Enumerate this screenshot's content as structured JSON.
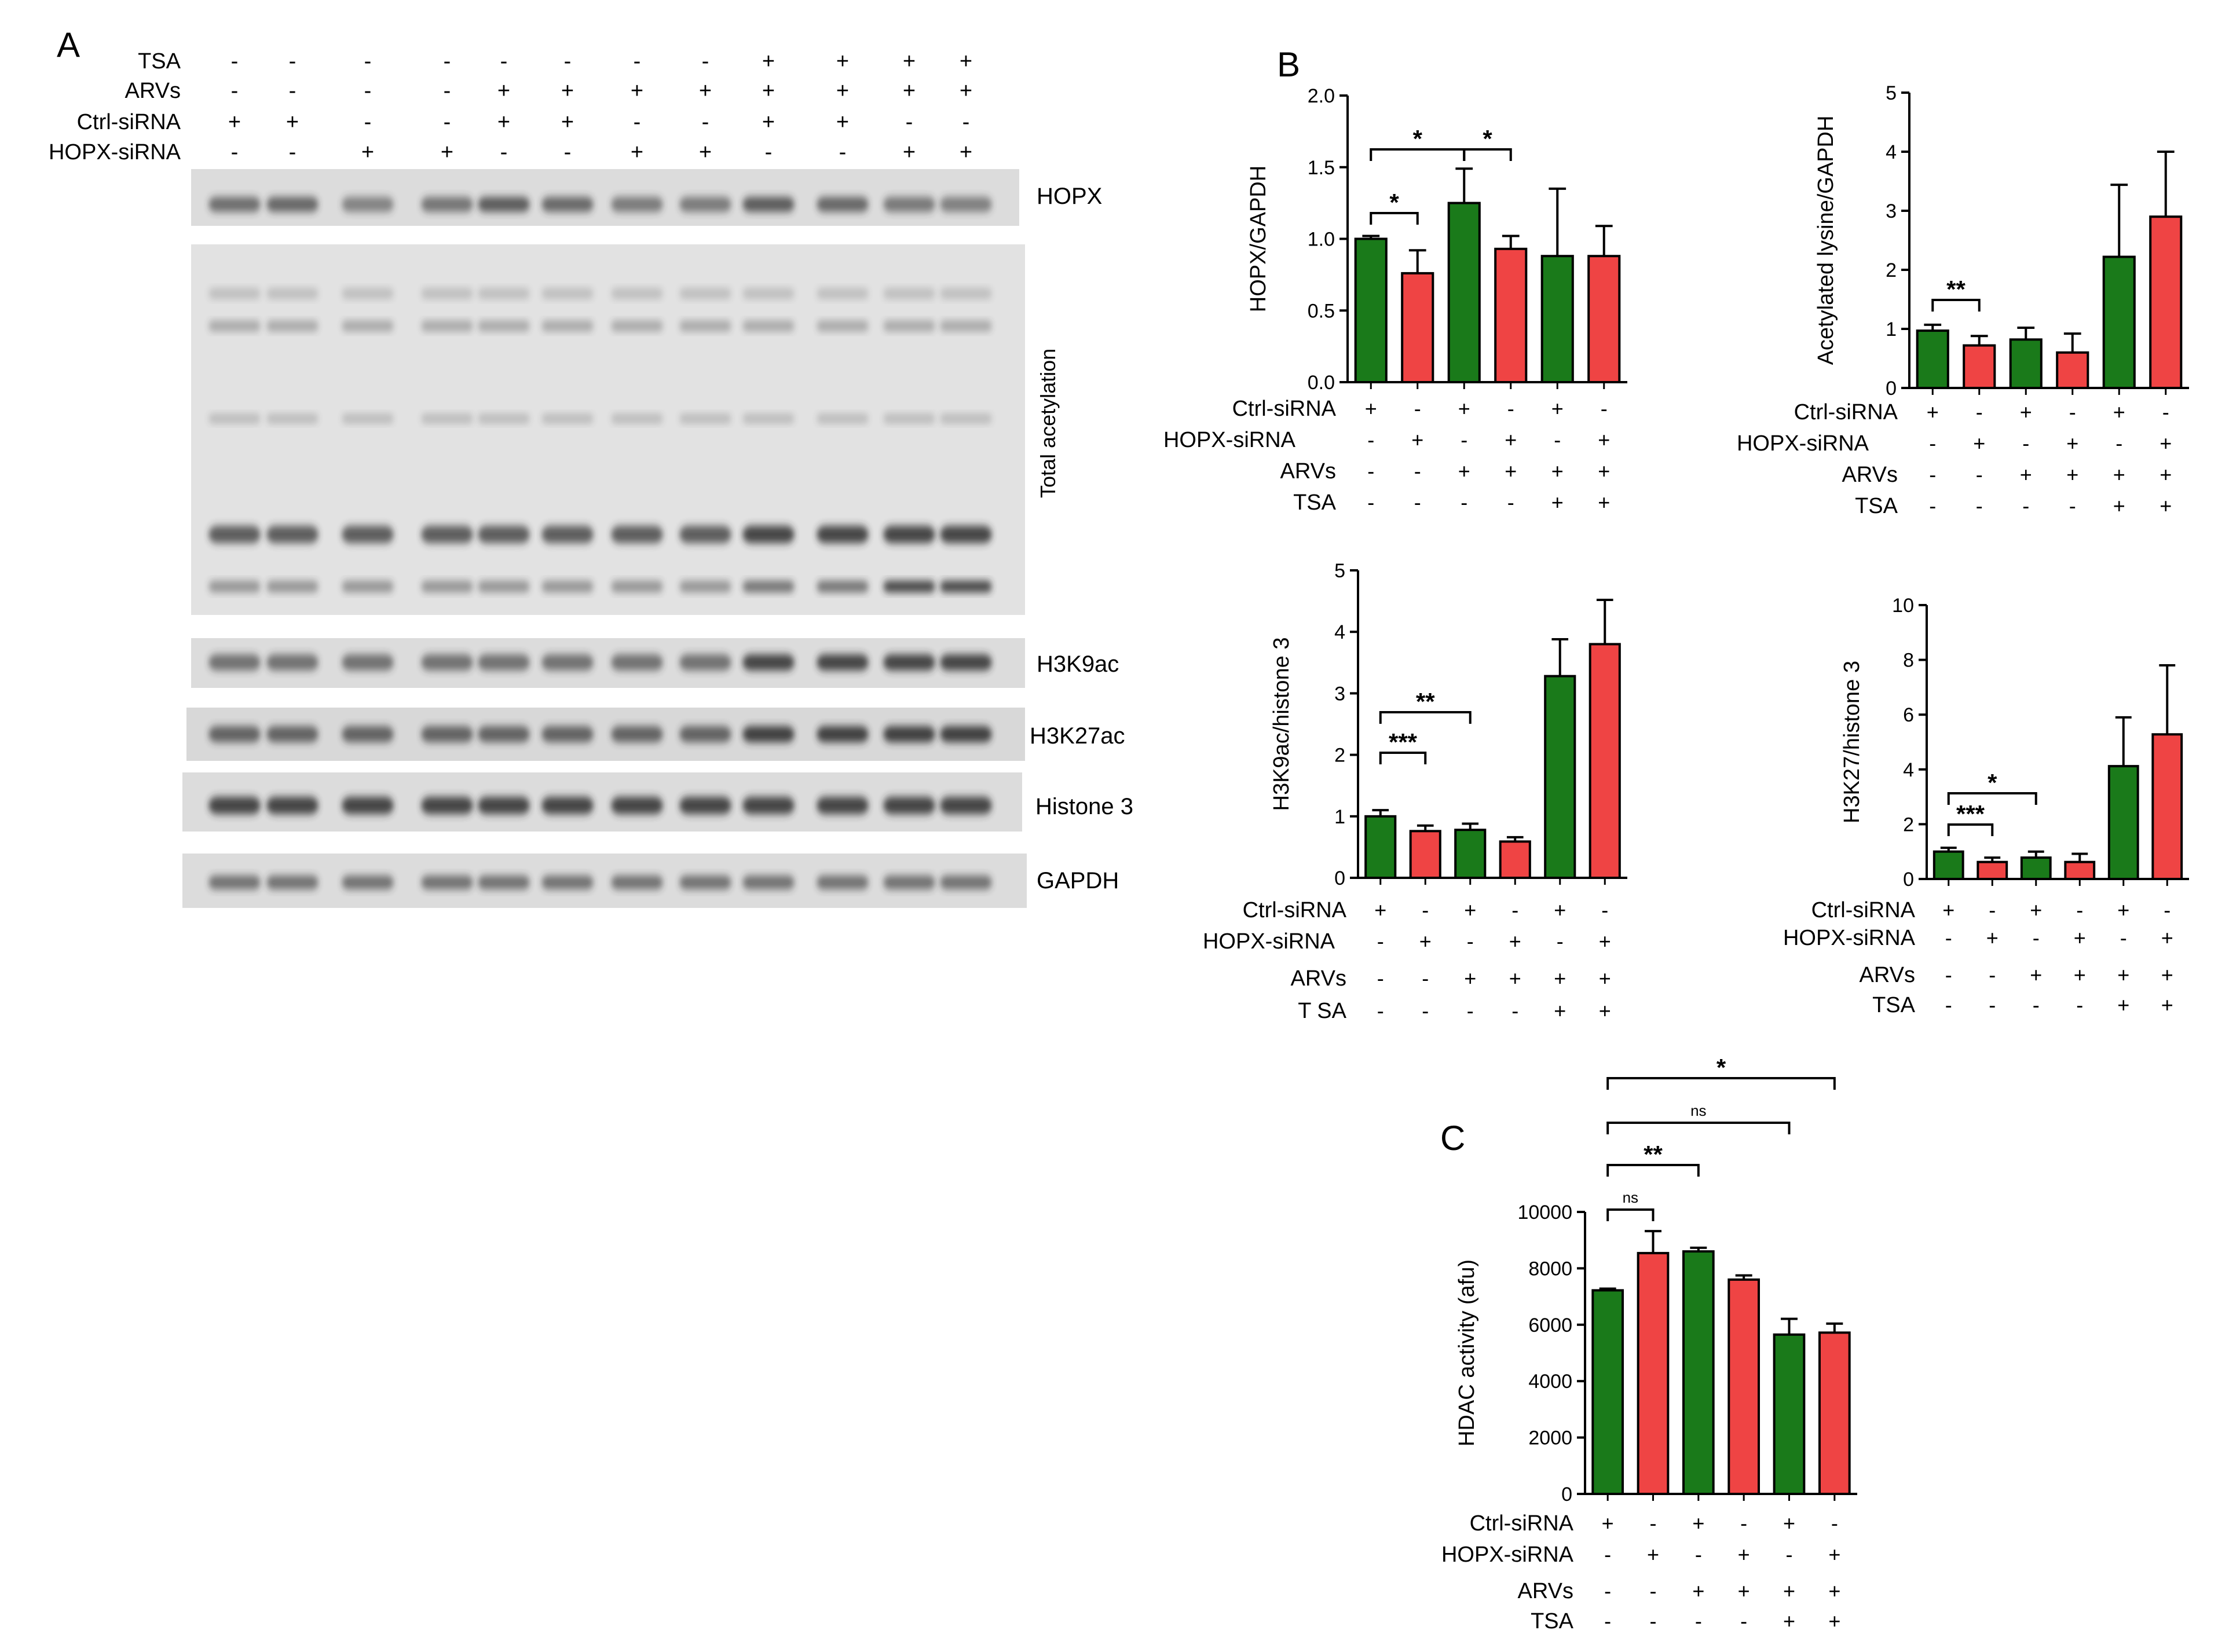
{
  "panel_labels": {
    "a": "A",
    "b": "B",
    "c": "C"
  },
  "blot": {
    "condition_rows": [
      {
        "name": "TSA",
        "signs": [
          "-",
          "-",
          "-",
          "-",
          "-",
          "-",
          "-",
          "-",
          "+",
          "+",
          "+",
          "+"
        ]
      },
      {
        "name": "ARVs",
        "signs": [
          "-",
          "-",
          "-",
          "-",
          "+",
          "+",
          "+",
          "+",
          "+",
          "+",
          "+",
          "+"
        ]
      },
      {
        "name": "Ctrl-siRNA",
        "signs": [
          "+",
          "+",
          "-",
          "-",
          "+",
          "+",
          "-",
          "-",
          "+",
          "+",
          "-",
          "-"
        ]
      },
      {
        "name": "HOPX-siRNA",
        "signs": [
          "-",
          "-",
          "+",
          "+",
          "-",
          "-",
          "+",
          "+",
          "-",
          "-",
          "+",
          "+"
        ]
      }
    ],
    "labels": {
      "hopx": "HOPX",
      "total_acetylation": "Total acetylation",
      "h3k9ac": "H3K9ac",
      "h3k27ac": "H3K27ac",
      "histone3": "Histone 3",
      "gapdh": "GAPDH"
    }
  },
  "chart_data": [
    {
      "id": "hopx",
      "type": "bar",
      "ylabel": "HOPX/GAPDH",
      "ylim": [
        0,
        2.0
      ],
      "yticks": [
        "0.0",
        "0.5",
        "1.0",
        "1.5",
        "2.0"
      ],
      "values": [
        1.0,
        0.76,
        1.25,
        0.93,
        0.88,
        0.88
      ],
      "errors": [
        0.02,
        0.16,
        0.24,
        0.09,
        0.47,
        0.21
      ],
      "colors": [
        "#1a7a1a",
        "#ef4444",
        "#1a7a1a",
        "#ef4444",
        "#1a7a1a",
        "#ef4444"
      ],
      "conditions": [
        {
          "name": "Ctrl-siRNA",
          "signs": [
            "+",
            "-",
            "+",
            "-",
            "+",
            "-"
          ]
        },
        {
          "name": "HOPX-siRNA",
          "signs": [
            "-",
            "+",
            "-",
            "+",
            "-",
            "+"
          ]
        },
        {
          "name": "ARVs",
          "signs": [
            "-",
            "-",
            "+",
            "+",
            "+",
            "+"
          ]
        },
        {
          "name": "TSA",
          "signs": [
            "-",
            "-",
            "-",
            "-",
            "+",
            "+"
          ]
        }
      ],
      "significance": [
        {
          "from": 0,
          "to": 1,
          "label": "*"
        },
        {
          "from": 0,
          "to": 2,
          "label": "*"
        },
        {
          "from": 2,
          "to": 3,
          "label": "*"
        }
      ]
    },
    {
      "id": "acetyl",
      "type": "bar",
      "ylabel": "Acetylated lysine/GAPDH",
      "ylim": [
        0,
        5
      ],
      "yticks": [
        "0",
        "1",
        "2",
        "3",
        "4",
        "5"
      ],
      "values": [
        0.97,
        0.72,
        0.82,
        0.6,
        2.22,
        2.9
      ],
      "errors": [
        0.1,
        0.16,
        0.2,
        0.32,
        1.22,
        1.1
      ],
      "colors": [
        "#1a7a1a",
        "#ef4444",
        "#1a7a1a",
        "#ef4444",
        "#1a7a1a",
        "#ef4444"
      ],
      "conditions": [
        {
          "name": "Ctrl-siRNA",
          "signs": [
            "+",
            "-",
            "+",
            "-",
            "+",
            "-"
          ]
        },
        {
          "name": "HOPX-siRNA",
          "signs": [
            "-",
            "+",
            "-",
            "+",
            "-",
            "+"
          ]
        },
        {
          "name": "ARVs",
          "signs": [
            "-",
            "-",
            "+",
            "+",
            "+",
            "+"
          ]
        },
        {
          "name": "TSA",
          "signs": [
            "-",
            "-",
            "-",
            "-",
            "+",
            "+"
          ]
        }
      ],
      "significance": [
        {
          "from": 0,
          "to": 1,
          "label": "**"
        }
      ]
    },
    {
      "id": "h3k9",
      "type": "bar",
      "ylabel": "H3K9ac/histone 3",
      "ylim": [
        0,
        5
      ],
      "yticks": [
        "0",
        "1",
        "2",
        "3",
        "4",
        "5"
      ],
      "values": [
        1.0,
        0.76,
        0.78,
        0.59,
        3.28,
        3.8
      ],
      "errors": [
        0.1,
        0.09,
        0.1,
        0.07,
        0.6,
        0.72
      ],
      "colors": [
        "#1a7a1a",
        "#ef4444",
        "#1a7a1a",
        "#ef4444",
        "#1a7a1a",
        "#ef4444"
      ],
      "conditions": [
        {
          "name": "Ctrl-siRNA",
          "signs": [
            "+",
            "-",
            "+",
            "-",
            "+",
            "-"
          ]
        },
        {
          "name": "HOPX-siRNA",
          "signs": [
            "-",
            "+",
            "-",
            "+",
            "-",
            "+"
          ]
        },
        {
          "name": "ARVs",
          "signs": [
            "-",
            "-",
            "+",
            "+",
            "+",
            "+"
          ]
        },
        {
          "name": "T SA",
          "signs": [
            "-",
            "-",
            "-",
            "-",
            "+",
            "+"
          ]
        }
      ],
      "significance": [
        {
          "from": 0,
          "to": 1,
          "label": "***"
        },
        {
          "from": 0,
          "to": 2,
          "label": "**"
        }
      ]
    },
    {
      "id": "h3k27",
      "type": "bar",
      "ylabel": "H3K27/histone 3",
      "ylim": [
        0,
        10
      ],
      "yticks": [
        "0",
        "2",
        "4",
        "6",
        "8",
        "10"
      ],
      "values": [
        1.0,
        0.62,
        0.78,
        0.62,
        4.12,
        5.28
      ],
      "errors": [
        0.14,
        0.16,
        0.22,
        0.3,
        1.78,
        2.52
      ],
      "colors": [
        "#1a7a1a",
        "#ef4444",
        "#1a7a1a",
        "#ef4444",
        "#1a7a1a",
        "#ef4444"
      ],
      "conditions": [
        {
          "name": "Ctrl-siRNA",
          "signs": [
            "+",
            "-",
            "+",
            "-",
            "+",
            "-"
          ]
        },
        {
          "name": "HOPX-siRNA",
          "signs": [
            "-",
            "+",
            "-",
            "+",
            "-",
            "+"
          ]
        },
        {
          "name": "ARVs",
          "signs": [
            "-",
            "-",
            "+",
            "+",
            "+",
            "+"
          ]
        },
        {
          "name": "TSA",
          "signs": [
            "-",
            "-",
            "-",
            "-",
            "+",
            "+"
          ]
        }
      ],
      "significance": [
        {
          "from": 0,
          "to": 1,
          "label": "***"
        },
        {
          "from": 0,
          "to": 2,
          "label": "*"
        }
      ]
    },
    {
      "id": "hdac",
      "type": "bar",
      "ylabel": "HDAC activity (afu)",
      "ylim": [
        0,
        10000
      ],
      "yticks": [
        "0",
        "2000",
        "4000",
        "6000",
        "8000",
        "10000"
      ],
      "values": [
        7220,
        8540,
        8600,
        7600,
        5650,
        5720
      ],
      "errors": [
        60,
        780,
        130,
        150,
        560,
        320
      ],
      "colors": [
        "#1a7a1a",
        "#ef4444",
        "#1a7a1a",
        "#ef4444",
        "#1a7a1a",
        "#ef4444"
      ],
      "conditions": [
        {
          "name": "Ctrl-siRNA",
          "signs": [
            "+",
            "-",
            "+",
            "-",
            "+",
            "-"
          ]
        },
        {
          "name": "HOPX-siRNA",
          "signs": [
            "-",
            "+",
            "-",
            "+",
            "-",
            "+"
          ]
        },
        {
          "name": "ARVs",
          "signs": [
            "-",
            "-",
            "+",
            "+",
            "+",
            "+"
          ]
        },
        {
          "name": "TSA",
          "signs": [
            "-",
            "-",
            "-",
            "-",
            "+",
            "+"
          ]
        }
      ],
      "significance": [
        {
          "from": 0,
          "to": 1,
          "label": "ns"
        },
        {
          "from": 0,
          "to": 2,
          "label": "**"
        },
        {
          "from": 0,
          "to": 4,
          "label": "ns"
        },
        {
          "from": 0,
          "to": 5,
          "label": "*"
        }
      ]
    }
  ]
}
